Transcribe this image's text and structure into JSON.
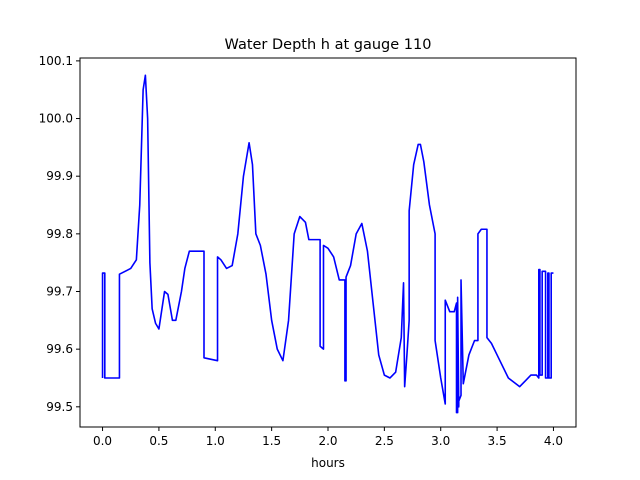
{
  "chart_data": {
    "type": "line",
    "title": "Water Depth h at gauge 110",
    "xlabel": "hours",
    "ylabel": "",
    "xlim": [
      -0.2,
      4.2
    ],
    "ylim": [
      99.465,
      100.105
    ],
    "xticks": [
      0.0,
      0.5,
      1.0,
      1.5,
      2.0,
      2.5,
      3.0,
      3.5,
      4.0
    ],
    "xtick_labels": [
      "0.0",
      "0.5",
      "1.0",
      "1.5",
      "2.0",
      "2.5",
      "3.0",
      "3.5",
      "4.0"
    ],
    "yticks": [
      99.5,
      99.6,
      99.7,
      99.8,
      99.9,
      100.0,
      100.1
    ],
    "ytick_labels": [
      "99.5",
      "99.6",
      "99.7",
      "99.8",
      "99.9",
      "100.0",
      "100.1"
    ],
    "grid": false,
    "series": [
      {
        "color": "#0000ff",
        "x": [
          0.0,
          0.0,
          0.02,
          0.02,
          0.15,
          0.15,
          0.25,
          0.3,
          0.33,
          0.36,
          0.38,
          0.4,
          0.42,
          0.44,
          0.47,
          0.5,
          0.55,
          0.58,
          0.62,
          0.65,
          0.7,
          0.73,
          0.77,
          0.82,
          0.86,
          0.9,
          0.9,
          1.02,
          1.02,
          1.05,
          1.1,
          1.15,
          1.2,
          1.25,
          1.3,
          1.33,
          1.36,
          1.4,
          1.45,
          1.5,
          1.55,
          1.6,
          1.65,
          1.7,
          1.75,
          1.8,
          1.83,
          1.88,
          1.93,
          1.93,
          1.96,
          1.96,
          2.0,
          2.05,
          2.1,
          2.15,
          2.15,
          2.16,
          2.16,
          2.2,
          2.25,
          2.3,
          2.35,
          2.4,
          2.45,
          2.5,
          2.55,
          2.6,
          2.65,
          2.67,
          2.68,
          2.68,
          2.7,
          2.72,
          2.72,
          2.76,
          2.8,
          2.82,
          2.85,
          2.9,
          2.95,
          2.95,
          3.0,
          3.04,
          3.04,
          3.08,
          3.12,
          3.14,
          3.14,
          3.15,
          3.15,
          3.16,
          3.16,
          3.18,
          3.18,
          3.2,
          3.25,
          3.3,
          3.33,
          3.33,
          3.36,
          3.41,
          3.41,
          3.45,
          3.5,
          3.6,
          3.7,
          3.75,
          3.8,
          3.85,
          3.87,
          3.87,
          3.88,
          3.88,
          3.9,
          3.9,
          3.93,
          3.93,
          3.95,
          3.95,
          3.96,
          3.96,
          3.98,
          3.98,
          4.0
        ],
        "y": [
          99.55,
          99.732,
          99.732,
          99.55,
          99.55,
          99.73,
          99.74,
          99.755,
          99.85,
          100.05,
          100.075,
          100.0,
          99.75,
          99.67,
          99.645,
          99.635,
          99.7,
          99.695,
          99.65,
          99.65,
          99.7,
          99.74,
          99.77,
          99.77,
          99.77,
          99.77,
          99.585,
          99.58,
          99.76,
          99.755,
          99.74,
          99.745,
          99.8,
          99.9,
          99.958,
          99.92,
          99.8,
          99.78,
          99.73,
          99.65,
          99.6,
          99.58,
          99.65,
          99.8,
          99.83,
          99.82,
          99.79,
          99.79,
          99.79,
          99.605,
          99.6,
          99.78,
          99.775,
          99.76,
          99.72,
          99.72,
          99.545,
          99.545,
          99.725,
          99.745,
          99.8,
          99.818,
          99.77,
          99.68,
          99.59,
          99.555,
          99.55,
          99.56,
          99.62,
          99.715,
          99.535,
          99.535,
          99.59,
          99.65,
          99.84,
          99.92,
          99.955,
          99.955,
          99.925,
          99.85,
          99.8,
          99.615,
          99.55,
          99.505,
          99.685,
          99.665,
          99.665,
          99.68,
          99.49,
          99.49,
          99.69,
          99.5,
          99.51,
          99.52,
          99.72,
          99.54,
          99.59,
          99.615,
          99.615,
          99.8,
          99.808,
          99.808,
          99.62,
          99.61,
          99.59,
          99.55,
          99.535,
          99.545,
          99.555,
          99.555,
          99.55,
          99.738,
          99.738,
          99.555,
          99.555,
          99.735,
          99.735,
          99.55,
          99.55,
          99.732,
          99.732,
          99.55,
          99.55,
          99.732,
          99.732
        ]
      }
    ]
  }
}
